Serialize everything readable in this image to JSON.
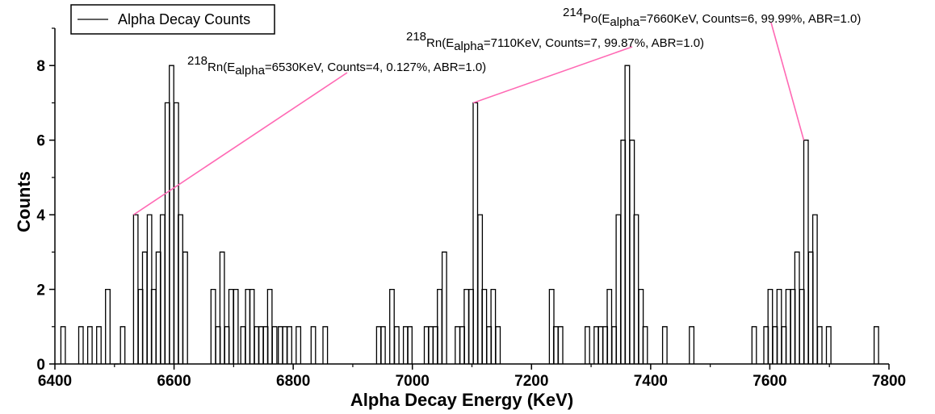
{
  "chart_data": {
    "type": "histogram",
    "xlabel": "Alpha Decay Energy (KeV)",
    "ylabel": "Counts",
    "xlim": [
      6400,
      7800
    ],
    "ylim": [
      0,
      9
    ],
    "x_ticks": [
      6400,
      6600,
      6800,
      7000,
      7200,
      7400,
      7600,
      7800
    ],
    "y_ticks": [
      0,
      2,
      4,
      6,
      8
    ],
    "legend": {
      "label": "Alpha Decay Counts",
      "position": "top-left"
    },
    "bin_width": 7.5,
    "series": [
      {
        "name": "Alpha Decay Counts",
        "color": "#000000",
        "bins": [
          [
            6410,
            1
          ],
          [
            6440,
            1
          ],
          [
            6455,
            1
          ],
          [
            6470,
            1
          ],
          [
            6485,
            2
          ],
          [
            6500,
            0
          ],
          [
            6510,
            1
          ],
          [
            6532,
            4
          ],
          [
            6540,
            2
          ],
          [
            6547,
            3
          ],
          [
            6555,
            4
          ],
          [
            6562,
            2
          ],
          [
            6570,
            3
          ],
          [
            6577,
            4
          ],
          [
            6585,
            7
          ],
          [
            6592,
            8
          ],
          [
            6600,
            7
          ],
          [
            6607,
            4
          ],
          [
            6615,
            3
          ],
          [
            6662,
            2
          ],
          [
            6670,
            1
          ],
          [
            6677,
            3
          ],
          [
            6685,
            1
          ],
          [
            6692,
            2
          ],
          [
            6700,
            2
          ],
          [
            6712,
            1
          ],
          [
            6720,
            2
          ],
          [
            6727,
            2
          ],
          [
            6735,
            1
          ],
          [
            6742,
            1
          ],
          [
            6750,
            1
          ],
          [
            6757,
            2
          ],
          [
            6765,
            1
          ],
          [
            6775,
            1
          ],
          [
            6782,
            1
          ],
          [
            6790,
            1
          ],
          [
            6805,
            1
          ],
          [
            6830,
            1
          ],
          [
            6850,
            1
          ],
          [
            6940,
            1
          ],
          [
            6947,
            1
          ],
          [
            6962,
            2
          ],
          [
            6970,
            1
          ],
          [
            6985,
            1
          ],
          [
            6992,
            1
          ],
          [
            7020,
            1
          ],
          [
            7027,
            1
          ],
          [
            7035,
            1
          ],
          [
            7042,
            2
          ],
          [
            7050,
            3
          ],
          [
            7072,
            1
          ],
          [
            7080,
            1
          ],
          [
            7087,
            2
          ],
          [
            7095,
            2
          ],
          [
            7102,
            7
          ],
          [
            7110,
            4
          ],
          [
            7117,
            2
          ],
          [
            7125,
            1
          ],
          [
            7132,
            2
          ],
          [
            7140,
            1
          ],
          [
            7230,
            2
          ],
          [
            7237,
            1
          ],
          [
            7245,
            1
          ],
          [
            7290,
            1
          ],
          [
            7305,
            1
          ],
          [
            7312,
            1
          ],
          [
            7320,
            1
          ],
          [
            7327,
            2
          ],
          [
            7335,
            1
          ],
          [
            7342,
            4
          ],
          [
            7350,
            6
          ],
          [
            7357,
            8
          ],
          [
            7365,
            6
          ],
          [
            7372,
            4
          ],
          [
            7380,
            2
          ],
          [
            7387,
            1
          ],
          [
            7420,
            1
          ],
          [
            7465,
            1
          ],
          [
            7570,
            1
          ],
          [
            7590,
            1
          ],
          [
            7597,
            2
          ],
          [
            7605,
            1
          ],
          [
            7612,
            2
          ],
          [
            7620,
            1
          ],
          [
            7627,
            2
          ],
          [
            7635,
            2
          ],
          [
            7642,
            3
          ],
          [
            7650,
            2
          ],
          [
            7657,
            6
          ],
          [
            7665,
            3
          ],
          [
            7672,
            4
          ],
          [
            7680,
            1
          ],
          [
            7695,
            1
          ],
          [
            7775,
            1
          ]
        ]
      }
    ],
    "annotations": [
      {
        "sup": "218",
        "base": "Rn(E",
        "sub": "alpha",
        "rest": "=6530KeV, Counts=4, 0.127%, ABR=1.0)",
        "target_x": 6532,
        "target_y": 4,
        "color": "#ff69b4"
      },
      {
        "sup": "218",
        "base": "Rn(E",
        "sub": "alpha",
        "rest": "=7110KeV, Counts=7, 99.87%, ABR=1.0)",
        "target_x": 7102,
        "target_y": 7,
        "color": "#ff69b4"
      },
      {
        "sup": "214",
        "base": "Po(E",
        "sub": "alpha",
        "rest": "=7660KeV, Counts=6, 99.99%, ABR=1.0)",
        "target_x": 7657,
        "target_y": 6,
        "color": "#ff69b4"
      }
    ]
  }
}
